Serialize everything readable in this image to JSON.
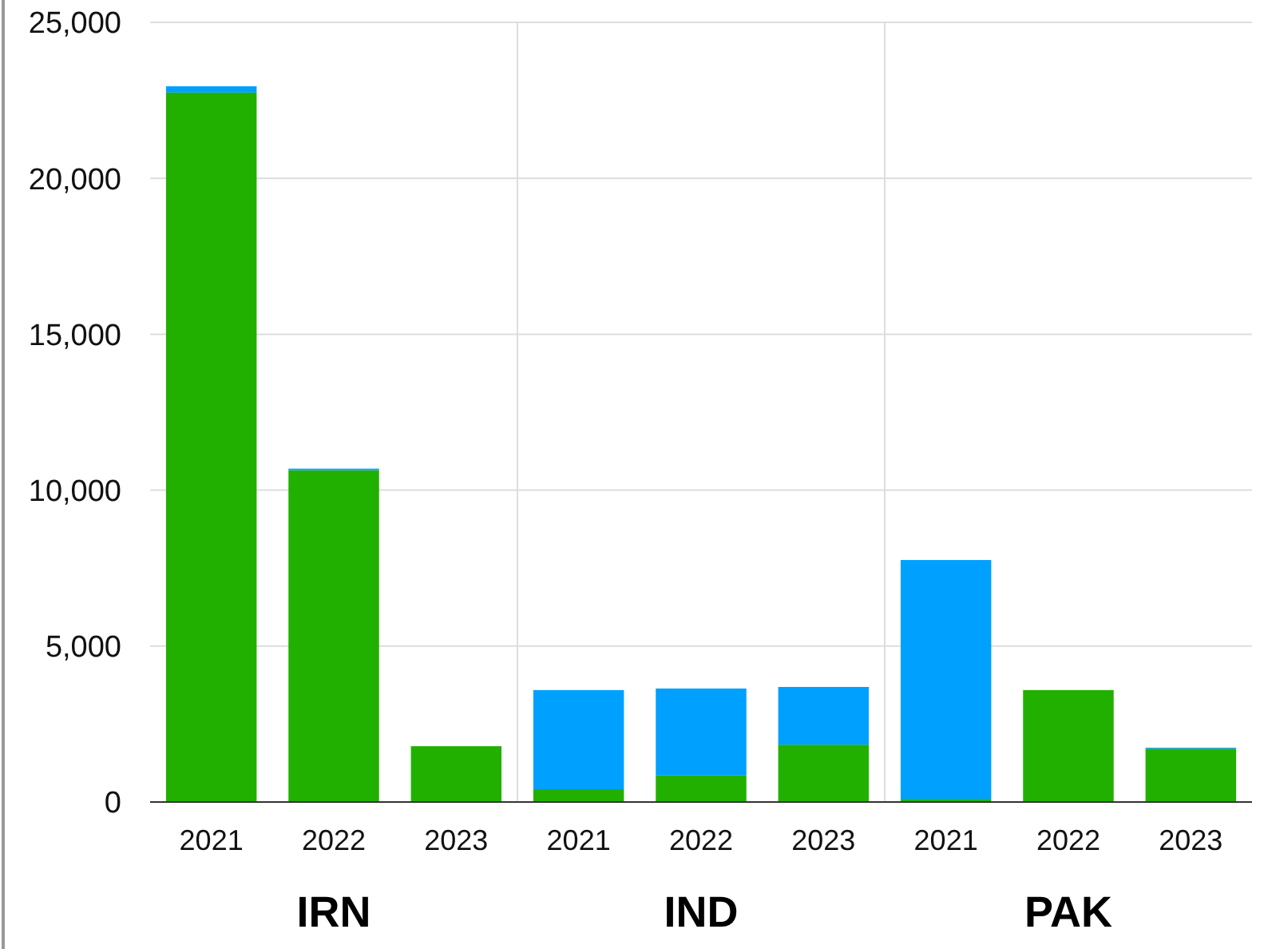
{
  "chart_data": {
    "type": "bar",
    "stacked": true,
    "categories": [
      "2021",
      "2022",
      "2023",
      "2021",
      "2022",
      "2023",
      "2021",
      "2022",
      "2023"
    ],
    "series": [
      {
        "color": "#22b000",
        "values": [
          22750,
          10640,
          1790,
          410,
          850,
          1840,
          100,
          3590,
          1710
        ]
      },
      {
        "color": "#00a0ff",
        "values": [
          200,
          50,
          0,
          3180,
          2790,
          1850,
          7660,
          0,
          30
        ]
      }
    ],
    "ylim": [
      0,
      25000
    ],
    "yticks": [
      {
        "value": 0,
        "label": "0"
      },
      {
        "value": 5000,
        "label": "5,000"
      },
      {
        "value": 10000,
        "label": "10,000"
      },
      {
        "value": 15000,
        "label": "15,000"
      },
      {
        "value": 20000,
        "label": "20,000"
      },
      {
        "value": 25000,
        "label": "25,000"
      }
    ],
    "grid": "y",
    "annotations": [
      "IRN",
      "IND",
      "PAK"
    ]
  }
}
